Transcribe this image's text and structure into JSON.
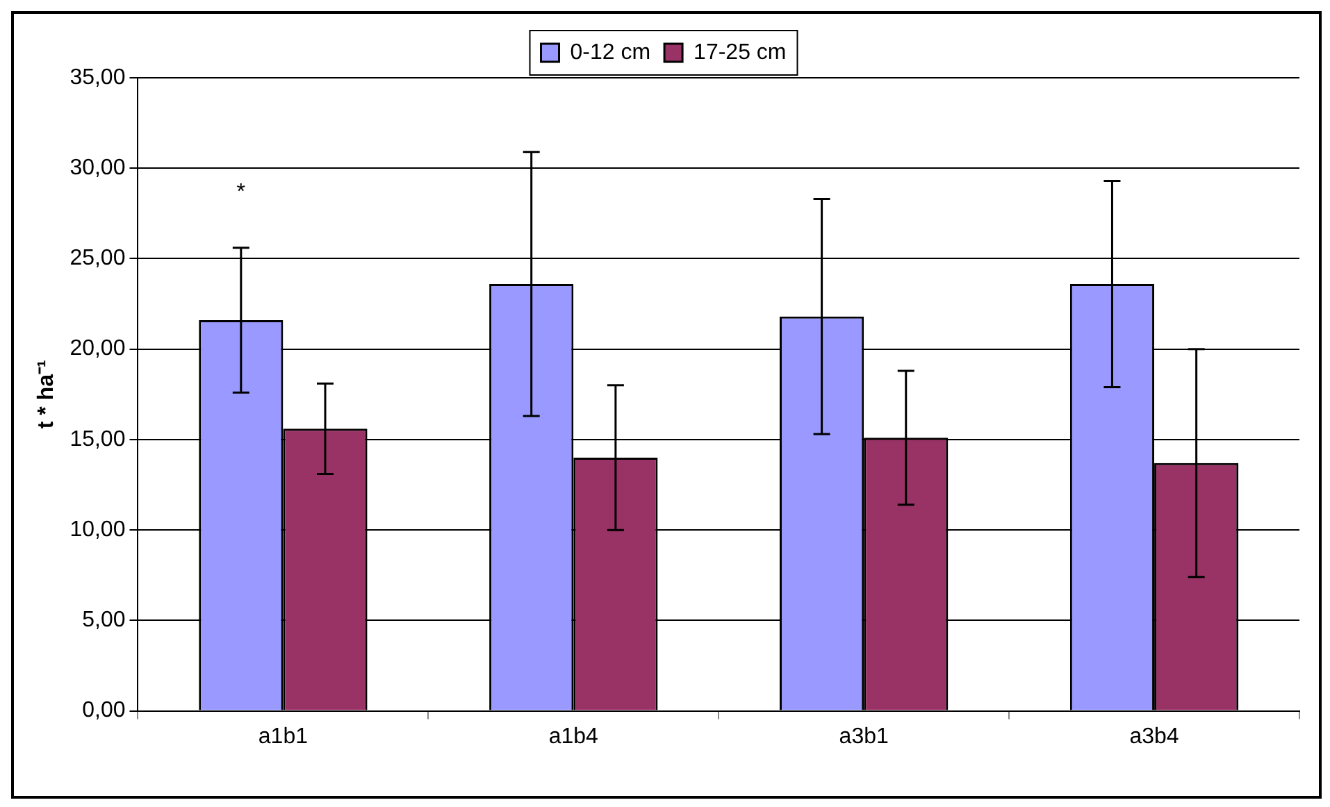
{
  "chart_data": {
    "type": "bar",
    "ylabel": "t * ha⁻¹",
    "categories": [
      "a1b1",
      "a1b4",
      "a3b1",
      "a3b4"
    ],
    "series": [
      {
        "name": "0-12 cm",
        "color": "#9999ff",
        "values": [
          21.6,
          23.6,
          21.8,
          23.6
        ],
        "errors": [
          4.0,
          7.3,
          6.5,
          5.7
        ]
      },
      {
        "name": "17-25 cm",
        "color": "#993366",
        "values": [
          15.6,
          14.0,
          15.1,
          13.7
        ],
        "errors": [
          2.5,
          4.0,
          3.7,
          6.3
        ]
      }
    ],
    "ylim": [
      0,
      35
    ],
    "yticks": [
      {
        "value": 0,
        "label": "0,00"
      },
      {
        "value": 5,
        "label": "5,00"
      },
      {
        "value": 10,
        "label": "10,00"
      },
      {
        "value": 15,
        "label": "15,00"
      },
      {
        "value": 20,
        "label": "20,00"
      },
      {
        "value": 25,
        "label": "25,00"
      },
      {
        "value": 30,
        "label": "30,00"
      },
      {
        "value": 35,
        "label": "35,00"
      }
    ],
    "grid": "y",
    "legend": "top",
    "annotations": [
      "*"
    ]
  }
}
